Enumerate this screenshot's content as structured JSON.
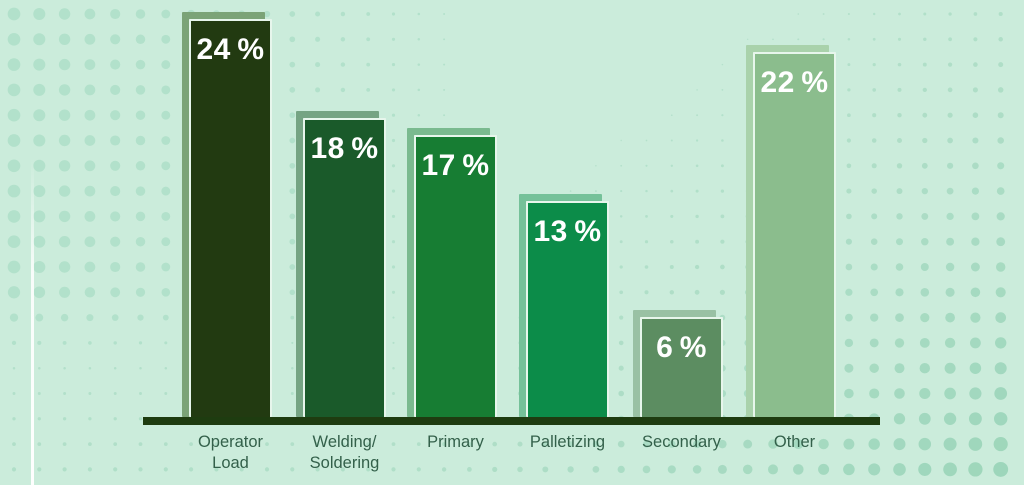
{
  "chart_data": {
    "type": "bar",
    "title": "",
    "xlabel": "",
    "ylabel": "",
    "grid": false,
    "legend": "none",
    "categories": [
      "Operator Load",
      "Welding/Soldering",
      "Primary",
      "Palletizing",
      "Secondary",
      "Other"
    ],
    "categories_lines": [
      [
        "Operator",
        "Load"
      ],
      [
        "Welding/",
        "Soldering"
      ],
      [
        "Primary"
      ],
      [
        "Palletizing"
      ],
      [
        "Secondary"
      ],
      [
        "Other"
      ]
    ],
    "values": [
      24,
      18,
      17,
      13,
      6,
      22
    ],
    "value_labels": [
      "24 %",
      "18 %",
      "17 %",
      "13 %",
      "6 %",
      "22 %"
    ],
    "bar_colors": [
      "#223a11",
      "#1a5a2a",
      "#177d33",
      "#0c8c49",
      "#5c8d61",
      "#8bbd8d"
    ],
    "shadow_colors": [
      "#7ba377",
      "#75a483",
      "#7aba8f",
      "#75c199",
      "#99c1a4",
      "#a9d2ab"
    ]
  },
  "style": {
    "background_color": "#cbecdb",
    "dot_color": "#7cc6a4",
    "axis_color": "#1e3c10",
    "bar_outline_color": "#e7f6ec",
    "value_text_color": "#ffffff",
    "category_text_color": "#33604a"
  }
}
